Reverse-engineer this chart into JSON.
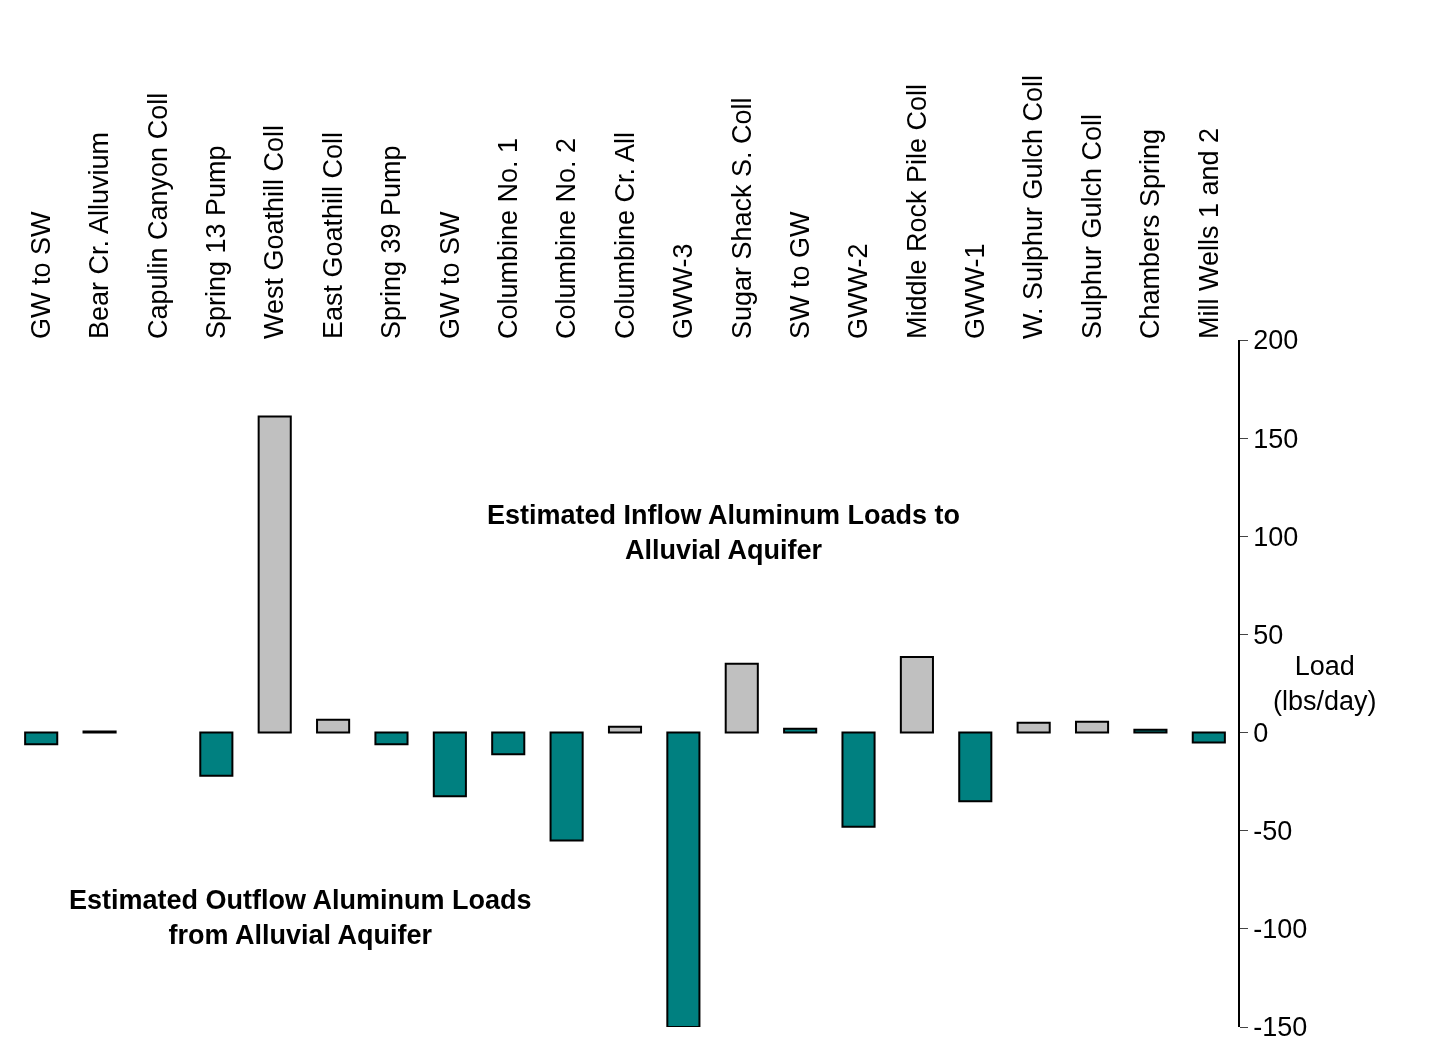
{
  "chart_data": {
    "type": "bar",
    "categories": [
      "GW to SW",
      "Bear Cr. Alluvium",
      "Capulin Canyon Coll",
      "Spring 13 Pump",
      "West Goathill Coll",
      "East Goathill Coll",
      "Spring 39 Pump",
      "GW to SW",
      "Columbine No. 1",
      "Columbine No. 2",
      "Columbine Cr. All",
      "GWW-3",
      "Sugar Shack S. Coll",
      "SW to GW",
      "GWW-2",
      "Middle Rock Pile Coll",
      "GWW-1",
      "W. Sulphur Gulch Coll",
      "Sulphur Gulch Coll",
      "Chambers Spring",
      "Mill Wells 1 and 2"
    ],
    "values": [
      -6,
      0.5,
      null,
      -22,
      161,
      6.5,
      -6,
      -32.5,
      -11,
      -55,
      3,
      -150,
      35,
      2,
      -48,
      38.5,
      -35,
      5,
      5.5,
      1.5,
      -5
    ],
    "colors": [
      "#008080",
      "#c0c0c0",
      "#c0c0c0",
      "#008080",
      "#c0c0c0",
      "#c0c0c0",
      "#008080",
      "#008080",
      "#008080",
      "#008080",
      "#c0c0c0",
      "#008080",
      "#c0c0c0",
      "#008080",
      "#008080",
      "#c0c0c0",
      "#008080",
      "#c0c0c0",
      "#c0c0c0",
      "#008080",
      "#008080"
    ],
    "ylabel": "Load\n(lbs/day)",
    "ylim": [
      -150,
      200
    ],
    "yticks": [
      -150,
      -100,
      -50,
      0,
      50,
      100,
      150,
      200
    ],
    "grid": false,
    "legend": false,
    "annotations": [
      "Estimated Inflow Aluminum Loads to\nAlluvial Aquifer",
      "Estimated Outflow Aluminum Loads\nfrom Alluvial Aquifer"
    ]
  }
}
